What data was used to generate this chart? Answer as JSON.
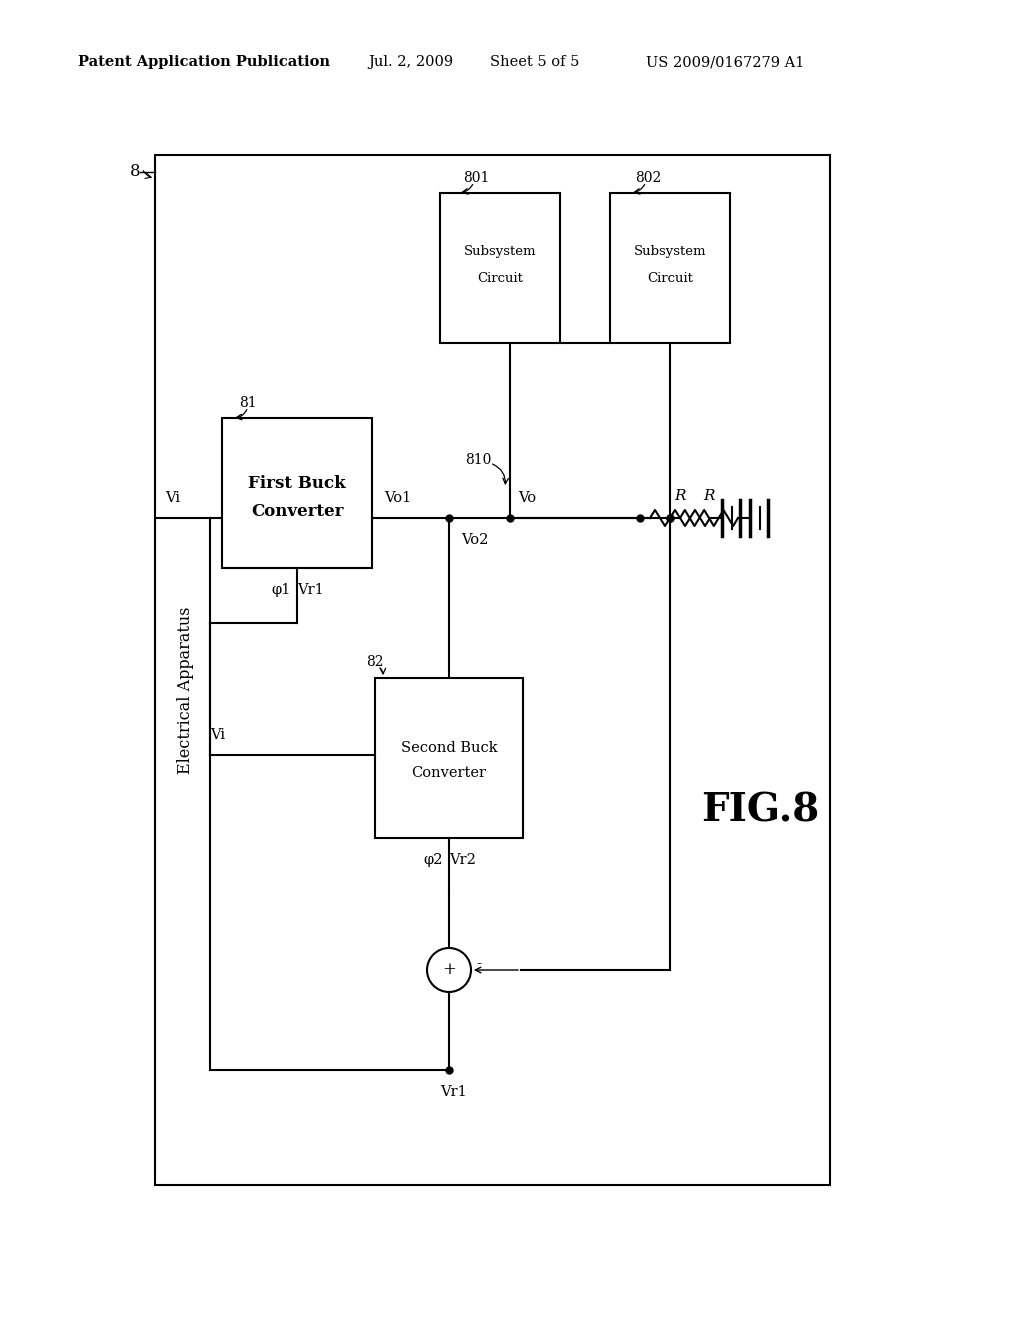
{
  "bg_color": "#ffffff",
  "header_text": "Patent Application Publication",
  "header_date": "Jul. 2, 2009",
  "header_sheet": "Sheet 5 of 5",
  "header_patent": "US 2009/0167279 A1",
  "fig_label": "FIG.8",
  "elec_app_label": "Electrical Apparatus",
  "label_8": "8",
  "label_81": "81",
  "label_82": "82",
  "label_801": "801",
  "label_802": "802",
  "label_810": "810",
  "label_Vo1": "Vo1",
  "label_Vo2": "Vo2",
  "label_Vo": "Vo",
  "label_Vi_top": "Vi",
  "label_Vi_bot": "Vi",
  "label_phi1": "φ1",
  "label_Vr1_top": "Vr1",
  "label_phi2": "φ2",
  "label_Vr2": "Vr2",
  "label_Vr1_bot": "Vr1",
  "label_R": "R",
  "label_plus": "+"
}
